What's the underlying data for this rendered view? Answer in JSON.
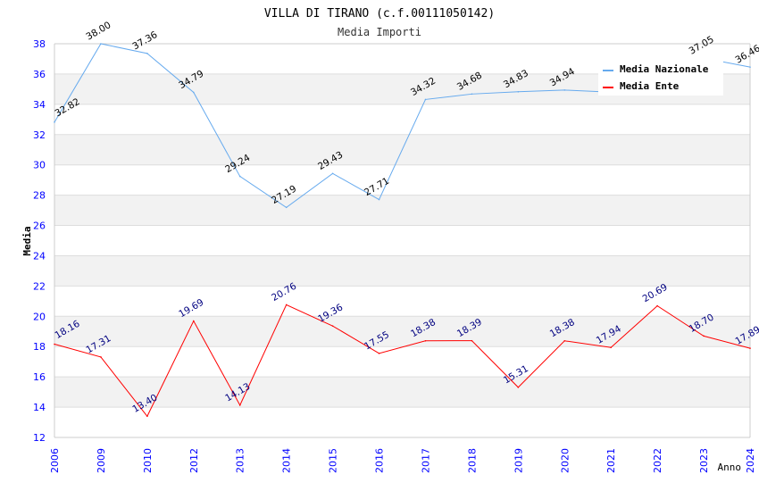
{
  "chart_data": {
    "type": "line",
    "title": "VILLA DI TIRANO (c.f.00111050142)",
    "subtitle": "Media Importi",
    "xlabel": "Anno",
    "ylabel": "Media",
    "ylim": [
      12,
      38
    ],
    "yticks": [
      12,
      14,
      16,
      18,
      20,
      22,
      24,
      26,
      28,
      30,
      32,
      34,
      36,
      38
    ],
    "categories": [
      "2006",
      "2009",
      "2010",
      "2012",
      "2013",
      "2014",
      "2015",
      "2016",
      "2017",
      "2018",
      "2019",
      "2020",
      "2021",
      "2022",
      "2023",
      "2024"
    ],
    "grid": true,
    "legend_position": "top-right",
    "series": [
      {
        "name": "Media Nazionale",
        "color": "#66aaee",
        "values": [
          32.82,
          38.0,
          37.36,
          34.79,
          29.24,
          27.19,
          29.43,
          27.71,
          34.32,
          34.68,
          34.83,
          34.94,
          34.8,
          34.9,
          37.05,
          36.46
        ],
        "labels": [
          "32.82",
          "38.00",
          "37.36",
          "34.79",
          "29.24",
          "27.19",
          "29.43",
          "27.71",
          "34.32",
          "34.68",
          "34.83",
          "34.94",
          "",
          "",
          "37.05",
          "36.46"
        ]
      },
      {
        "name": "Media Ente",
        "color": "#ff0000",
        "values": [
          18.16,
          17.31,
          13.4,
          19.69,
          14.13,
          20.76,
          19.36,
          17.55,
          18.38,
          18.39,
          15.31,
          18.38,
          17.94,
          20.69,
          18.7,
          17.89
        ],
        "labels": [
          "18.16",
          "17.31",
          "13.40",
          "19.69",
          "14.13",
          "20.76",
          "19.36",
          "17.55",
          "18.38",
          "18.39",
          "15.31",
          "18.38",
          "17.94",
          "20.69",
          "18.70",
          "17.89"
        ]
      }
    ]
  }
}
